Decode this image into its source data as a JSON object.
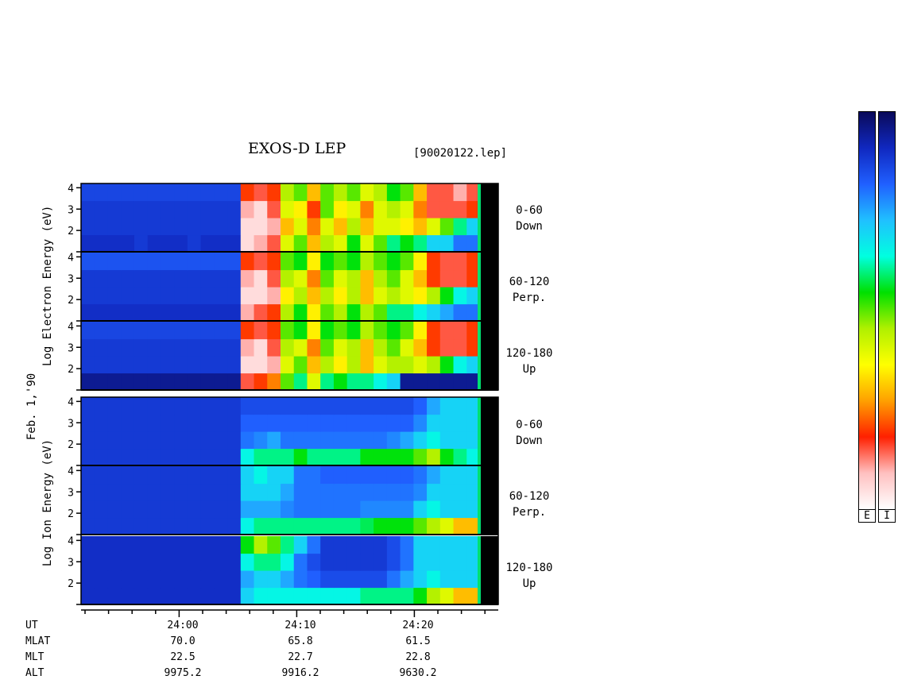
{
  "header": {
    "title": "EXOS-D LEP",
    "file_ref": "[90020122.lep]"
  },
  "y_axis_labels": {
    "electron": "Log  Electron  Energy (eV)",
    "ion": "Log  Ion  Energy (eV)",
    "date": "Feb. 1,'90"
  },
  "channels": {
    "electron": [
      {
        "angle": "0-60",
        "dir": "Down"
      },
      {
        "angle": "60-120",
        "dir": "Perp."
      },
      {
        "angle": "120-180",
        "dir": "Up"
      }
    ],
    "ion": [
      {
        "angle": "0-60",
        "dir": "Down"
      },
      {
        "angle": "60-120",
        "dir": "Perp."
      },
      {
        "angle": "120-180",
        "dir": "Up"
      }
    ]
  },
  "footer": {
    "row_labels": [
      "UT",
      "MLAT",
      "MLT",
      "ALT"
    ],
    "columns": [
      {
        "ut": "24:00",
        "mlat": "70.0",
        "mlt": "22.5",
        "alt": "9975.2"
      },
      {
        "ut": "24:10",
        "mlat": "65.8",
        "mlt": "22.7",
        "alt": "9916.2"
      },
      {
        "ut": "24:20",
        "mlat": "61.5",
        "mlt": "22.8",
        "alt": "9630.2"
      }
    ]
  },
  "colorbar": {
    "labels": [
      "E",
      "I"
    ],
    "colors": [
      "#0a0a5a",
      "#1028c0",
      "#2060ff",
      "#20c0ff",
      "#00ffe0",
      "#00e000",
      "#b0f000",
      "#ffff00",
      "#ffa000",
      "#ff2000",
      "#ffc0c0",
      "#ffffff"
    ]
  },
  "chart_data": {
    "type": "heatmap",
    "title": "EXOS-D LEP",
    "xlabel": "UT",
    "x_ticks": [
      "24:00",
      "24:10",
      "24:20"
    ],
    "y_ticks": [
      "1",
      "2",
      "3",
      "4"
    ],
    "ylim": [
      1,
      4.2
    ],
    "y_scale": "log energy (eV)",
    "panels": [
      {
        "species": "Electron",
        "channel": "0-60 Down",
        "intensity": [
          [
            0.1,
            0.1,
            0.1,
            0.1,
            0.12,
            0.1,
            0.1,
            0.1,
            0.12,
            0.1,
            0.1,
            0.1,
            0.95,
            0.9,
            0.85,
            0.6,
            0.5,
            0.7,
            0.55,
            0.6,
            0.45,
            0.6,
            0.5,
            0.4,
            0.45,
            0.4,
            0.3,
            0.3,
            0.2,
            0.2
          ],
          [
            0.12,
            0.12,
            0.12,
            0.12,
            0.12,
            0.12,
            0.12,
            0.12,
            0.12,
            0.12,
            0.12,
            0.12,
            0.95,
            0.95,
            0.9,
            0.7,
            0.6,
            0.75,
            0.6,
            0.7,
            0.55,
            0.7,
            0.6,
            0.6,
            0.65,
            0.7,
            0.6,
            0.5,
            0.4,
            0.3
          ],
          [
            0.12,
            0.12,
            0.12,
            0.12,
            0.12,
            0.12,
            0.12,
            0.12,
            0.12,
            0.12,
            0.12,
            0.12,
            0.9,
            0.95,
            0.85,
            0.6,
            0.65,
            0.8,
            0.5,
            0.65,
            0.6,
            0.75,
            0.6,
            0.55,
            0.6,
            0.75,
            0.85,
            0.85,
            0.85,
            0.8
          ],
          [
            0.14,
            0.14,
            0.14,
            0.14,
            0.14,
            0.14,
            0.14,
            0.14,
            0.14,
            0.14,
            0.14,
            0.14,
            0.8,
            0.85,
            0.8,
            0.55,
            0.5,
            0.7,
            0.5,
            0.55,
            0.5,
            0.6,
            0.55,
            0.45,
            0.5,
            0.7,
            0.85,
            0.85,
            0.9,
            0.85
          ]
        ]
      },
      {
        "species": "Electron",
        "channel": "60-120 Perp.",
        "intensity": [
          [
            0.1,
            0.1,
            0.1,
            0.1,
            0.1,
            0.1,
            0.1,
            0.1,
            0.1,
            0.1,
            0.1,
            0.1,
            0.9,
            0.85,
            0.8,
            0.55,
            0.45,
            0.65,
            0.5,
            0.55,
            0.45,
            0.55,
            0.5,
            0.4,
            0.4,
            0.35,
            0.3,
            0.25,
            0.2,
            0.2
          ],
          [
            0.12,
            0.12,
            0.12,
            0.12,
            0.12,
            0.12,
            0.12,
            0.12,
            0.12,
            0.12,
            0.12,
            0.12,
            0.95,
            0.95,
            0.9,
            0.65,
            0.55,
            0.7,
            0.55,
            0.65,
            0.55,
            0.7,
            0.6,
            0.55,
            0.6,
            0.65,
            0.55,
            0.45,
            0.35,
            0.3
          ],
          [
            0.12,
            0.12,
            0.12,
            0.12,
            0.12,
            0.12,
            0.12,
            0.12,
            0.12,
            0.12,
            0.12,
            0.12,
            0.9,
            0.95,
            0.85,
            0.55,
            0.6,
            0.75,
            0.5,
            0.6,
            0.55,
            0.7,
            0.55,
            0.5,
            0.6,
            0.7,
            0.8,
            0.85,
            0.85,
            0.8
          ],
          [
            0.16,
            0.16,
            0.16,
            0.16,
            0.16,
            0.16,
            0.16,
            0.16,
            0.16,
            0.16,
            0.16,
            0.16,
            0.8,
            0.85,
            0.8,
            0.5,
            0.45,
            0.65,
            0.45,
            0.5,
            0.45,
            0.55,
            0.5,
            0.45,
            0.5,
            0.65,
            0.8,
            0.85,
            0.85,
            0.8
          ]
        ]
      },
      {
        "species": "Electron",
        "channel": "120-180 Up",
        "intensity": [
          [
            0.05,
            0.05,
            0.05,
            0.05,
            0.05,
            0.05,
            0.05,
            0.05,
            0.05,
            0.05,
            0.05,
            0.05,
            0.85,
            0.8,
            0.75,
            0.5,
            0.4,
            0.6,
            0.4,
            0.45,
            0.4,
            0.4,
            0.35,
            0.3,
            0.05,
            0.05,
            0.05,
            0.05,
            0.05,
            0.05
          ],
          [
            0.12,
            0.12,
            0.12,
            0.12,
            0.12,
            0.12,
            0.12,
            0.12,
            0.12,
            0.12,
            0.12,
            0.12,
            0.95,
            0.95,
            0.9,
            0.6,
            0.5,
            0.7,
            0.55,
            0.65,
            0.55,
            0.7,
            0.6,
            0.55,
            0.55,
            0.6,
            0.55,
            0.45,
            0.35,
            0.3
          ],
          [
            0.12,
            0.12,
            0.12,
            0.12,
            0.12,
            0.12,
            0.12,
            0.12,
            0.12,
            0.12,
            0.12,
            0.12,
            0.9,
            0.95,
            0.85,
            0.55,
            0.6,
            0.75,
            0.5,
            0.6,
            0.55,
            0.7,
            0.55,
            0.5,
            0.6,
            0.7,
            0.8,
            0.85,
            0.85,
            0.8
          ],
          [
            0.14,
            0.14,
            0.14,
            0.14,
            0.14,
            0.14,
            0.14,
            0.14,
            0.14,
            0.14,
            0.14,
            0.14,
            0.8,
            0.85,
            0.8,
            0.5,
            0.45,
            0.65,
            0.45,
            0.5,
            0.45,
            0.55,
            0.5,
            0.45,
            0.5,
            0.65,
            0.8,
            0.85,
            0.85,
            0.8
          ]
        ]
      },
      {
        "species": "Ion",
        "channel": "0-60 Down",
        "intensity": [
          [
            0.12,
            0.12,
            0.12,
            0.12,
            0.12,
            0.12,
            0.12,
            0.12,
            0.12,
            0.12,
            0.12,
            0.12,
            0.35,
            0.4,
            0.4,
            0.4,
            0.45,
            0.4,
            0.4,
            0.4,
            0.4,
            0.45,
            0.45,
            0.45,
            0.45,
            0.5,
            0.55,
            0.45,
            0.4,
            0.35
          ],
          [
            0.12,
            0.12,
            0.12,
            0.12,
            0.12,
            0.12,
            0.12,
            0.12,
            0.12,
            0.12,
            0.12,
            0.12,
            0.2,
            0.22,
            0.25,
            0.2,
            0.2,
            0.2,
            0.2,
            0.2,
            0.2,
            0.2,
            0.2,
            0.22,
            0.25,
            0.3,
            0.35,
            0.3,
            0.3,
            0.3
          ],
          [
            0.12,
            0.12,
            0.12,
            0.12,
            0.12,
            0.12,
            0.12,
            0.12,
            0.12,
            0.12,
            0.12,
            0.12,
            0.18,
            0.18,
            0.18,
            0.18,
            0.18,
            0.18,
            0.18,
            0.18,
            0.18,
            0.18,
            0.18,
            0.18,
            0.18,
            0.22,
            0.3,
            0.3,
            0.3,
            0.3
          ],
          [
            0.12,
            0.12,
            0.12,
            0.12,
            0.12,
            0.12,
            0.12,
            0.12,
            0.12,
            0.12,
            0.12,
            0.12,
            0.15,
            0.15,
            0.15,
            0.15,
            0.15,
            0.15,
            0.15,
            0.15,
            0.15,
            0.15,
            0.15,
            0.15,
            0.15,
            0.18,
            0.25,
            0.3,
            0.3,
            0.3
          ]
        ]
      },
      {
        "species": "Ion",
        "channel": "60-120 Perp.",
        "intensity": [
          [
            0.12,
            0.12,
            0.12,
            0.12,
            0.12,
            0.12,
            0.12,
            0.12,
            0.12,
            0.12,
            0.12,
            0.12,
            0.35,
            0.4,
            0.4,
            0.4,
            0.4,
            0.4,
            0.4,
            0.4,
            0.4,
            0.42,
            0.45,
            0.45,
            0.45,
            0.5,
            0.55,
            0.6,
            0.7,
            0.7
          ],
          [
            0.12,
            0.12,
            0.12,
            0.12,
            0.12,
            0.12,
            0.12,
            0.12,
            0.12,
            0.12,
            0.12,
            0.12,
            0.25,
            0.25,
            0.25,
            0.22,
            0.2,
            0.2,
            0.2,
            0.2,
            0.2,
            0.22,
            0.22,
            0.22,
            0.22,
            0.3,
            0.35,
            0.3,
            0.3,
            0.3
          ],
          [
            0.12,
            0.12,
            0.12,
            0.12,
            0.12,
            0.12,
            0.12,
            0.12,
            0.12,
            0.12,
            0.12,
            0.12,
            0.3,
            0.3,
            0.3,
            0.25,
            0.2,
            0.2,
            0.2,
            0.2,
            0.2,
            0.2,
            0.2,
            0.2,
            0.2,
            0.22,
            0.3,
            0.3,
            0.3,
            0.3
          ],
          [
            0.12,
            0.12,
            0.12,
            0.12,
            0.12,
            0.12,
            0.12,
            0.12,
            0.12,
            0.12,
            0.12,
            0.12,
            0.3,
            0.35,
            0.3,
            0.3,
            0.2,
            0.2,
            0.18,
            0.18,
            0.18,
            0.18,
            0.18,
            0.18,
            0.18,
            0.2,
            0.25,
            0.3,
            0.3,
            0.3
          ]
        ]
      },
      {
        "species": "Ion",
        "channel": "120-180 Up",
        "intensity": [
          [
            0.1,
            0.1,
            0.1,
            0.1,
            0.1,
            0.1,
            0.1,
            0.1,
            0.1,
            0.1,
            0.1,
            0.1,
            0.3,
            0.35,
            0.35,
            0.35,
            0.35,
            0.35,
            0.35,
            0.35,
            0.35,
            0.4,
            0.4,
            0.4,
            0.4,
            0.45,
            0.55,
            0.6,
            0.7,
            0.7
          ],
          [
            0.1,
            0.1,
            0.1,
            0.1,
            0.1,
            0.1,
            0.1,
            0.1,
            0.1,
            0.1,
            0.1,
            0.1,
            0.25,
            0.3,
            0.3,
            0.25,
            0.2,
            0.18,
            0.15,
            0.15,
            0.15,
            0.15,
            0.15,
            0.2,
            0.25,
            0.3,
            0.35,
            0.3,
            0.3,
            0.3
          ],
          [
            0.1,
            0.1,
            0.1,
            0.1,
            0.1,
            0.1,
            0.1,
            0.1,
            0.1,
            0.1,
            0.1,
            0.1,
            0.35,
            0.4,
            0.4,
            0.35,
            0.2,
            0.15,
            0.12,
            0.12,
            0.12,
            0.12,
            0.12,
            0.15,
            0.2,
            0.3,
            0.3,
            0.3,
            0.3,
            0.3
          ],
          [
            0.1,
            0.1,
            0.1,
            0.1,
            0.1,
            0.1,
            0.1,
            0.1,
            0.1,
            0.1,
            0.1,
            0.1,
            0.45,
            0.55,
            0.5,
            0.4,
            0.3,
            0.2,
            0.12,
            0.12,
            0.12,
            0.12,
            0.12,
            0.15,
            0.2,
            0.3,
            0.3,
            0.3,
            0.3,
            0.3
          ]
        ]
      }
    ]
  }
}
